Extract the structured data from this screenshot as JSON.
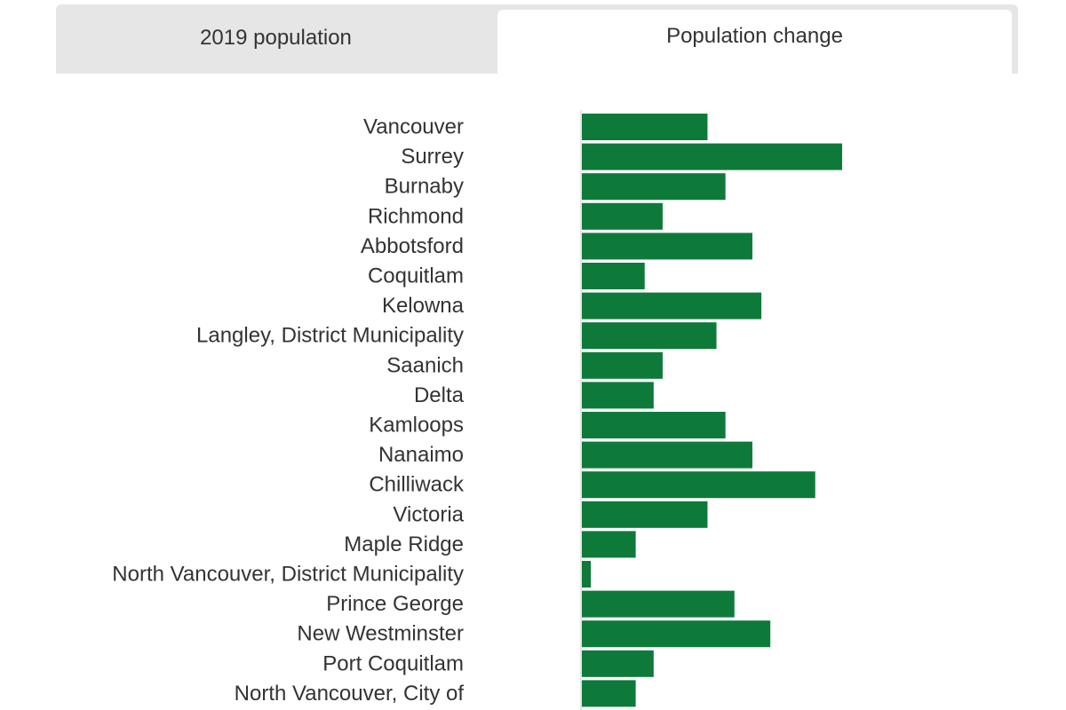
{
  "tabs": {
    "population_2019_label": "2019 population",
    "population_change_label": "Population change",
    "active": "Population change"
  },
  "colors": {
    "bar": "#0e7a3a",
    "tab_background": "#e6e6e6",
    "tab_active": "#ffffff",
    "text": "#333333",
    "axis": "#cccccc"
  },
  "chart_data": {
    "type": "bar",
    "orientation": "horizontal",
    "title": "",
    "xlabel": "",
    "ylabel": "",
    "grid": false,
    "legend": "none",
    "xlim": [
      0,
      29
    ],
    "categories": [
      "Vancouver",
      "Surrey",
      "Burnaby",
      "Richmond",
      "Abbotsford",
      "Coquitlam",
      "Kelowna",
      "Langley, District Municipality",
      "Saanich",
      "Delta",
      "Kamloops",
      "Nanaimo",
      "Chilliwack",
      "Victoria",
      "Maple Ridge",
      "North Vancouver, District Municipality",
      "Prince George",
      "New Westminster",
      "Port Coquitlam",
      "North Vancouver, City of"
    ],
    "values": [
      14,
      29,
      16,
      9,
      19,
      7,
      20,
      15,
      9,
      8,
      16,
      19,
      26,
      14,
      6,
      1,
      17,
      21,
      8,
      6
    ]
  }
}
